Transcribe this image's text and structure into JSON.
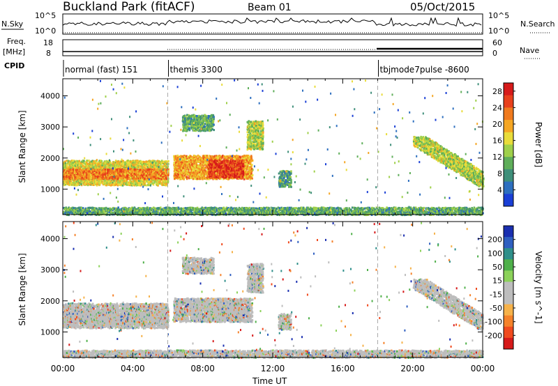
{
  "header": {
    "station": "Buckland Park (fitACF)",
    "beam": "Beam 01",
    "date": "05/Oct/2015"
  },
  "strips": {
    "nsky_label": "N.Sky",
    "nsearch_label": "N.Search",
    "nsky_ticks": [
      "10^5",
      "10^0"
    ],
    "nsearch_ticks": [
      "10^5",
      "10^0"
    ],
    "freq_label": "Freq.",
    "freq_unit": "[MHz]",
    "freq_ticks": [
      "18",
      "8"
    ],
    "nave_label": "Nave",
    "nave_ticks": [
      "60",
      "0"
    ],
    "cpid_label": "CPID",
    "cpid_modes": [
      {
        "name": "normal (fast) 151",
        "start_hour": 0
      },
      {
        "name": "themis 3300",
        "start_hour": 6
      },
      {
        "name": "tbjmode7pulse -8600",
        "start_hour": 18
      }
    ]
  },
  "colors": {
    "power_scale": [
      "#1a3fd6",
      "#2d6fbf",
      "#3f8f7a",
      "#5fae5a",
      "#9fd04a",
      "#e9dc3a",
      "#f5a623",
      "#f07a1e",
      "#e8401c",
      "#d61a1a"
    ],
    "velocity_scale": [
      "#d61a1a",
      "#f04a1e",
      "#f5822a",
      "#f6b24a",
      "#bdbdbd",
      "#bdbdbd",
      "#8cd25a",
      "#4fb04a",
      "#2f8f8a",
      "#2f5fc0",
      "#1a2fb0"
    ]
  },
  "chart_data": [
    {
      "type": "heatmap",
      "name": "power",
      "xlabel": "Time UT",
      "ylabel": "Slant Range [km]",
      "xlim": [
        0,
        24
      ],
      "ylim": [
        180,
        4550
      ],
      "x_ticks": [
        "00:00",
        "04:00",
        "08:00",
        "12:00",
        "16:00",
        "20:00",
        "00:00"
      ],
      "y_ticks": [
        1000,
        2000,
        3000,
        4000
      ],
      "colorbar_label": "Power [dB]",
      "colorbar_ticks": [
        4,
        8,
        12,
        16,
        20,
        24,
        28
      ],
      "colorbar_range": [
        0,
        30
      ],
      "regions": [
        {
          "t0": 0,
          "t1": 6,
          "r0": 1150,
          "r1": 1950,
          "level": 16
        },
        {
          "t0": 0,
          "t1": 6,
          "r0": 1350,
          "r1": 1650,
          "level": 22
        },
        {
          "t0": 6.3,
          "t1": 10.8,
          "r0": 1350,
          "r1": 2100,
          "level": 20
        },
        {
          "t0": 6.8,
          "t1": 8.6,
          "r0": 2900,
          "r1": 3400,
          "level": 10
        },
        {
          "t0": 8.3,
          "t1": 10.3,
          "r0": 1400,
          "r1": 1950,
          "level": 26
        },
        {
          "t0": 10.5,
          "t1": 11.4,
          "r0": 2300,
          "r1": 3200,
          "level": 14
        },
        {
          "t0": 12.3,
          "t1": 13.0,
          "r0": 1100,
          "r1": 1600,
          "level": 9
        },
        {
          "t0": 0,
          "t1": 24,
          "r0": 200,
          "r1": 450,
          "level": 10
        },
        {
          "t0": 20.0,
          "t1": 24,
          "r0": 1000,
          "r1": 2700,
          "level": 14
        }
      ]
    },
    {
      "type": "heatmap",
      "name": "velocity",
      "xlabel": "Time UT",
      "ylabel": "Slant Range [km]",
      "xlim": [
        0,
        24
      ],
      "ylim": [
        180,
        4550
      ],
      "x_ticks": [
        "00:00",
        "04:00",
        "08:00",
        "12:00",
        "16:00",
        "20:00",
        "00:00"
      ],
      "y_ticks": [
        1000,
        2000,
        3000,
        4000
      ],
      "colorbar_label": "Velocity [m s^-1]",
      "colorbar_ticks": [
        200,
        100,
        50,
        15,
        -15,
        -50,
        -100,
        -200
      ],
      "colorbar_range": [
        -250,
        250
      ]
    }
  ]
}
